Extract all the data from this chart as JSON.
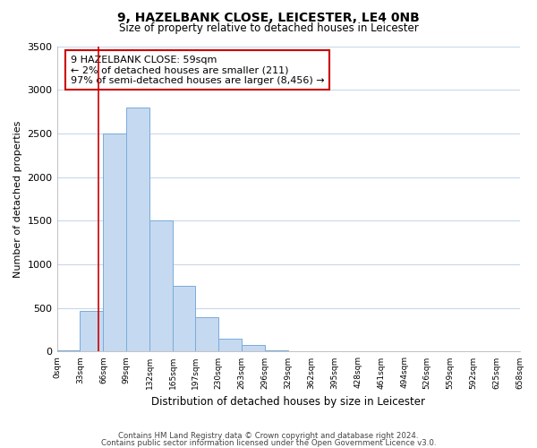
{
  "title": "9, HAZELBANK CLOSE, LEICESTER, LE4 0NB",
  "subtitle": "Size of property relative to detached houses in Leicester",
  "xlabel": "Distribution of detached houses by size in Leicester",
  "ylabel": "Number of detached properties",
  "bar_color": "#c5d9f0",
  "bar_edge_color": "#7aabdb",
  "grid_color": "#c8d8ea",
  "background_color": "#ffffff",
  "annotation_box_color": "#cc0000",
  "annotation_line_color": "#cc0000",
  "bin_edges": [
    0,
    33,
    66,
    99,
    132,
    165,
    197,
    230,
    263,
    296,
    329,
    362,
    395,
    428,
    461,
    494,
    526,
    559,
    592,
    625,
    658
  ],
  "bar_heights": [
    15,
    470,
    2500,
    2800,
    1500,
    750,
    390,
    150,
    75,
    15,
    0,
    0,
    0,
    0,
    0,
    0,
    0,
    0,
    0,
    0
  ],
  "tick_labels": [
    "0sqm",
    "33sqm",
    "66sqm",
    "99sqm",
    "132sqm",
    "165sqm",
    "197sqm",
    "230sqm",
    "263sqm",
    "296sqm",
    "329sqm",
    "362sqm",
    "395sqm",
    "428sqm",
    "461sqm",
    "494sqm",
    "526sqm",
    "559sqm",
    "592sqm",
    "625sqm",
    "658sqm"
  ],
  "property_line_x": 59,
  "ylim": [
    0,
    3500
  ],
  "yticks": [
    0,
    500,
    1000,
    1500,
    2000,
    2500,
    3000,
    3500
  ],
  "annotation_text_line1": "9 HAZELBANK CLOSE: 59sqm",
  "annotation_text_line2": "← 2% of detached houses are smaller (211)",
  "annotation_text_line3": "97% of semi-detached houses are larger (8,456) →",
  "footer_line1": "Contains HM Land Registry data © Crown copyright and database right 2024.",
  "footer_line2": "Contains public sector information licensed under the Open Government Licence v3.0."
}
